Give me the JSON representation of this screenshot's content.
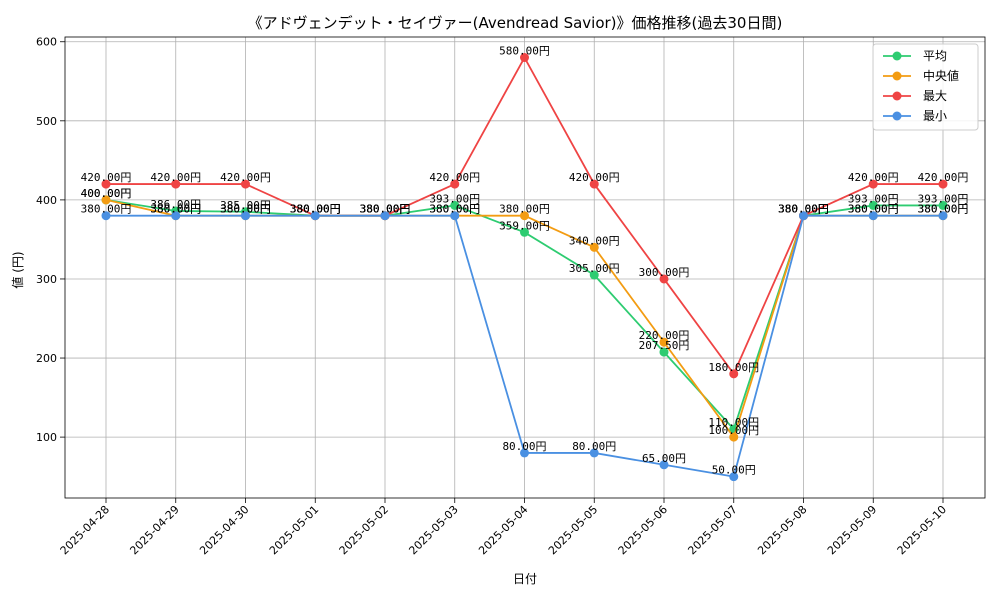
{
  "chart_data": {
    "type": "line",
    "title": "《アドヴェンデット・セイヴァー(Avendread Savior)》価格推移(過去30日間)",
    "xlabel": "日付",
    "ylabel": "値 (円)",
    "ylim": [
      23,
      606
    ],
    "yticks": [
      100,
      200,
      300,
      400,
      500,
      600
    ],
    "grid": true,
    "legend_position": "top-right",
    "value_suffix": "円",
    "categories": [
      "2025-04-28",
      "2025-04-29",
      "2025-04-30",
      "2025-05-01",
      "2025-05-02",
      "2025-05-03",
      "2025-05-04",
      "2025-05-05",
      "2025-05-06",
      "2025-05-07",
      "2025-05-08",
      "2025-05-09",
      "2025-05-10"
    ],
    "series": [
      {
        "name": "平均",
        "color": "#2ecc71",
        "values": [
          400,
          386,
          385,
          380,
          380,
          393,
          359,
          305,
          207.5,
          110,
          380,
          393,
          393
        ]
      },
      {
        "name": "中央値",
        "color": "#f39c12",
        "values": [
          400,
          380,
          380,
          380,
          380,
          380,
          380,
          340,
          220,
          100,
          380,
          380,
          380
        ]
      },
      {
        "name": "最大",
        "color": "#ef4444",
        "values": [
          420,
          420,
          420,
          380,
          380,
          420,
          580,
          420,
          300,
          180,
          380,
          420,
          420
        ]
      },
      {
        "name": "最小",
        "color": "#4a90e2",
        "values": [
          380,
          380,
          380,
          380,
          380,
          380,
          80,
          80,
          65,
          50,
          380,
          380,
          380
        ]
      }
    ]
  }
}
